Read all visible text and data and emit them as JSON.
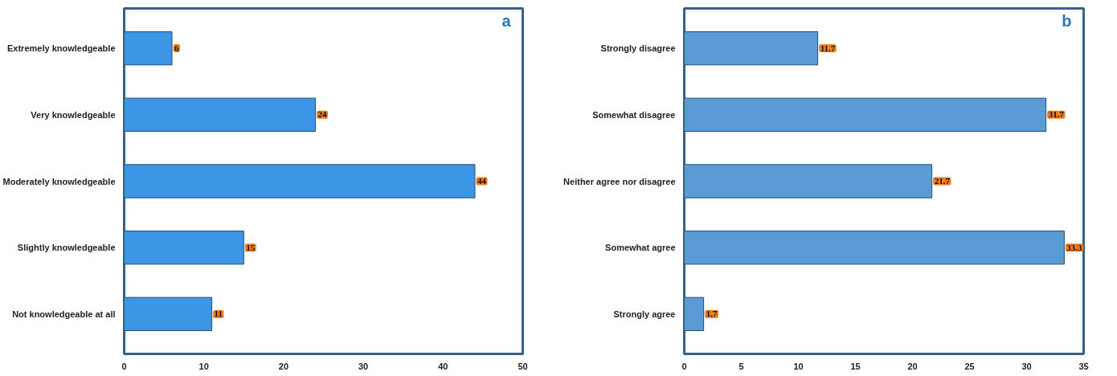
{
  "chart_data": [
    {
      "type": "bar",
      "orientation": "horizontal",
      "categories": [
        "Extremely knowledgeable",
        "Very knowledgeable",
        "Moderately knowledgeable",
        "Slightly knowledgeable",
        "Not knowledgeable at all"
      ],
      "values": [
        6,
        24,
        44,
        15,
        11
      ],
      "color": "#3d95e6",
      "xlim": [
        0,
        50
      ],
      "xticks": [
        0,
        10,
        20,
        30,
        40,
        50
      ],
      "data_labels": true,
      "grid": false,
      "legend": false,
      "annotations": [
        "a"
      ]
    },
    {
      "type": "bar",
      "orientation": "horizontal",
      "categories": [
        "Strongly disagree",
        "Somewhat disagree",
        "Neither agree nor disagree",
        "Somewhat agree",
        "Strongly agree"
      ],
      "values": [
        11.7,
        31.7,
        21.7,
        33.3,
        1.7
      ],
      "color": "#5b9bd5",
      "xlim": [
        0,
        35
      ],
      "xticks": [
        0,
        5,
        10,
        15,
        20,
        25,
        30,
        35
      ],
      "data_labels": true,
      "grid": false,
      "legend": false,
      "annotations": [
        "b"
      ]
    }
  ]
}
